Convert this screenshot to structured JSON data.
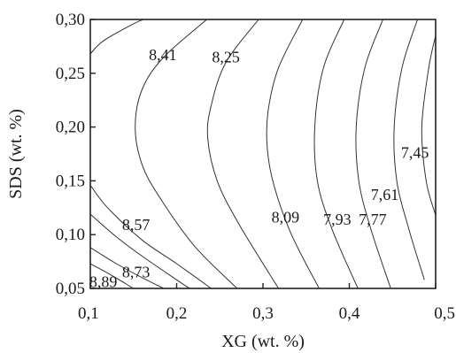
{
  "chart_data": {
    "type": "contour",
    "xlabel": "XG (wt. %)",
    "ylabel": "SDS (wt. %)",
    "xlim": [
      0.1,
      0.5
    ],
    "ylim": [
      0.05,
      0.3
    ],
    "x_ticks": [
      {
        "value": 0.1,
        "label": "0,1"
      },
      {
        "value": 0.2,
        "label": "0,2"
      },
      {
        "value": 0.3,
        "label": "0,3"
      },
      {
        "value": 0.4,
        "label": "0,4"
      },
      {
        "value": 0.5,
        "label": "0,5"
      }
    ],
    "y_ticks": [
      {
        "value": 0.05,
        "label": "0,05"
      },
      {
        "value": 0.1,
        "label": "0,10"
      },
      {
        "value": 0.15,
        "label": "0,15"
      },
      {
        "value": 0.2,
        "label": "0,20"
      },
      {
        "value": 0.25,
        "label": "0,25"
      },
      {
        "value": 0.3,
        "label": "0,30"
      }
    ],
    "contour_labels": [
      {
        "text": "8,41",
        "x": 0.184,
        "y": 0.268
      },
      {
        "text": "8,25",
        "x": 0.257,
        "y": 0.266
      },
      {
        "text": "8,57",
        "x": 0.153,
        "y": 0.11
      },
      {
        "text": "8,73",
        "x": 0.153,
        "y": 0.066
      },
      {
        "text": "8,89",
        "x": 0.115,
        "y": 0.057
      },
      {
        "text": "8,09",
        "x": 0.326,
        "y": 0.117
      },
      {
        "text": "7,93",
        "x": 0.386,
        "y": 0.115
      },
      {
        "text": "7,77",
        "x": 0.427,
        "y": 0.115
      },
      {
        "text": "7,61",
        "x": 0.441,
        "y": 0.138
      },
      {
        "text": "7,45",
        "x": 0.476,
        "y": 0.177
      }
    ],
    "contours": [
      [
        [
          0.1,
          0.268
        ],
        [
          0.115,
          0.28
        ],
        [
          0.15,
          0.296
        ],
        [
          0.162,
          0.3
        ]
      ],
      [
        [
          0.235,
          0.3
        ],
        [
          0.185,
          0.265
        ],
        [
          0.16,
          0.235
        ],
        [
          0.152,
          0.2
        ],
        [
          0.16,
          0.165
        ],
        [
          0.18,
          0.135
        ],
        [
          0.22,
          0.09
        ],
        [
          0.27,
          0.05
        ]
      ],
      [
        [
          0.295,
          0.3
        ],
        [
          0.257,
          0.26
        ],
        [
          0.24,
          0.22
        ],
        [
          0.236,
          0.19
        ],
        [
          0.247,
          0.15
        ],
        [
          0.272,
          0.11
        ],
        [
          0.318,
          0.05
        ]
      ],
      [
        [
          0.346,
          0.3
        ],
        [
          0.318,
          0.255
        ],
        [
          0.306,
          0.215
        ],
        [
          0.305,
          0.18
        ],
        [
          0.313,
          0.145
        ],
        [
          0.333,
          0.1
        ],
        [
          0.365,
          0.05
        ]
      ],
      [
        [
          0.394,
          0.3
        ],
        [
          0.37,
          0.255
        ],
        [
          0.36,
          0.2
        ],
        [
          0.363,
          0.15
        ],
        [
          0.38,
          0.105
        ],
        [
          0.41,
          0.05
        ]
      ],
      [
        [
          0.439,
          0.3
        ],
        [
          0.418,
          0.255
        ],
        [
          0.408,
          0.2
        ],
        [
          0.411,
          0.15
        ],
        [
          0.425,
          0.105
        ],
        [
          0.448,
          0.05
        ]
      ],
      [
        [
          0.479,
          0.3
        ],
        [
          0.461,
          0.255
        ],
        [
          0.452,
          0.2
        ],
        [
          0.455,
          0.15
        ],
        [
          0.469,
          0.105
        ],
        [
          0.487,
          0.058
        ]
      ],
      [
        [
          0.5,
          0.285
        ],
        [
          0.492,
          0.255
        ],
        [
          0.484,
          0.2
        ],
        [
          0.489,
          0.15
        ],
        [
          0.5,
          0.118
        ]
      ],
      [
        [
          0.1,
          0.146
        ],
        [
          0.12,
          0.125
        ],
        [
          0.16,
          0.095
        ],
        [
          0.2,
          0.073
        ],
        [
          0.24,
          0.05
        ]
      ],
      [
        [
          0.1,
          0.119
        ],
        [
          0.13,
          0.098
        ],
        [
          0.16,
          0.08
        ],
        [
          0.2,
          0.058
        ],
        [
          0.215,
          0.05
        ]
      ],
      [
        [
          0.1,
          0.088
        ],
        [
          0.13,
          0.073
        ],
        [
          0.16,
          0.06
        ],
        [
          0.185,
          0.05
        ]
      ],
      [
        [
          0.1,
          0.073
        ],
        [
          0.125,
          0.062
        ],
        [
          0.15,
          0.05
        ]
      ]
    ]
  }
}
